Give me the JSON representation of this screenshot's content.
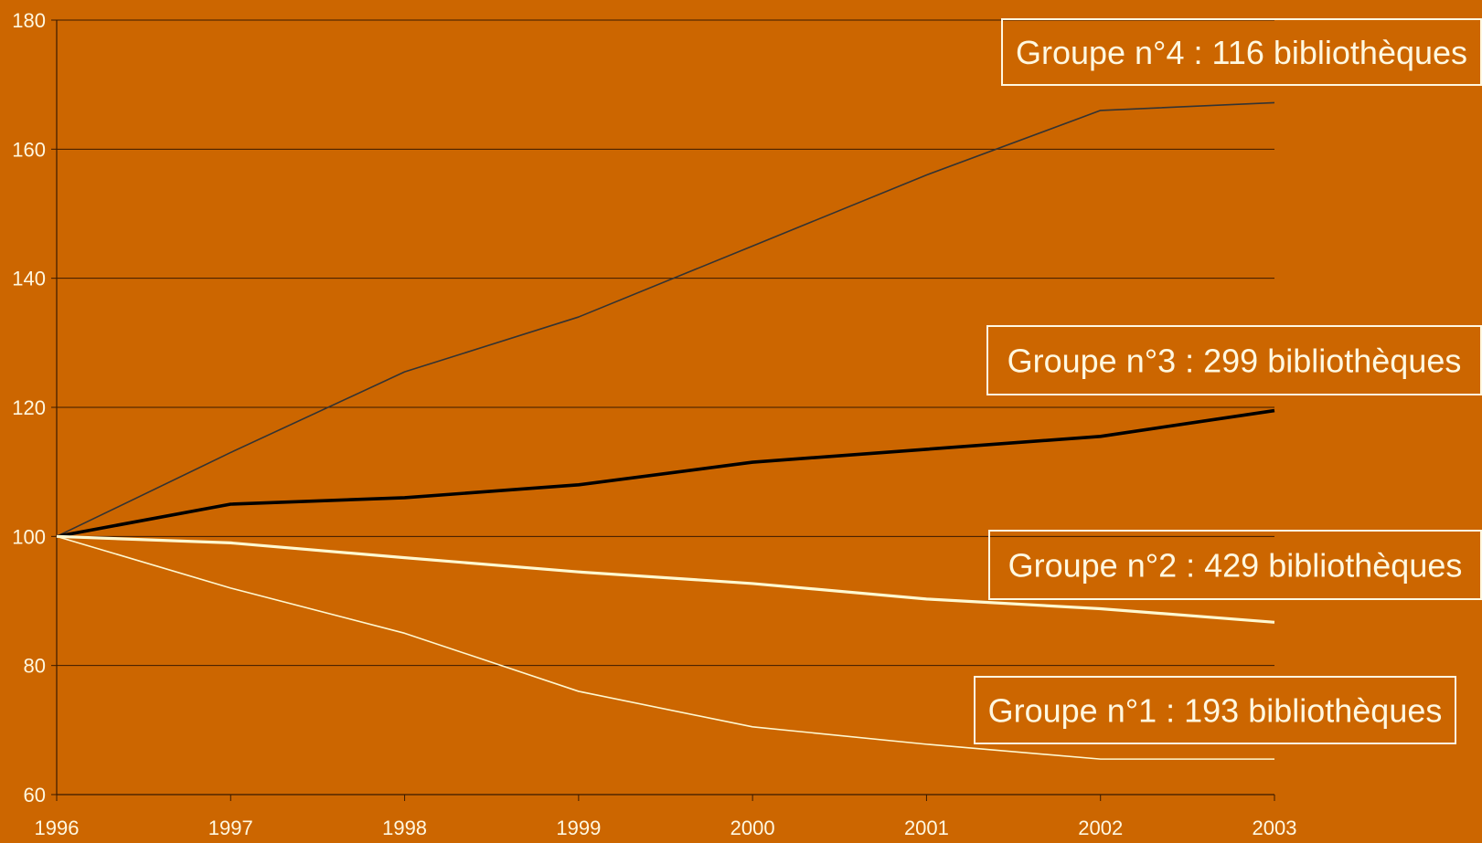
{
  "chart_data": {
    "type": "line",
    "title": "",
    "xlabel": "",
    "ylabel": "",
    "x": [
      1996,
      1997,
      1998,
      1999,
      2000,
      2001,
      2002,
      2003
    ],
    "x_tick_labels": [
      "1996",
      "1997",
      "1998",
      "1999",
      "2000",
      "2001",
      "2002",
      "2003"
    ],
    "ylim": [
      60,
      180
    ],
    "y_ticks": [
      60,
      80,
      100,
      120,
      140,
      160,
      180
    ],
    "y_tick_labels": [
      "60",
      "80",
      "100",
      "120",
      "140",
      "160",
      "180"
    ],
    "grid": "horizontal",
    "background_color": "#cc6600",
    "series": [
      {
        "name": "Groupe n°4 : 116 bibliothèques",
        "values": [
          100,
          113,
          125.5,
          134,
          145,
          156,
          166,
          167.2
        ],
        "color": "#333333",
        "style": "thin"
      },
      {
        "name": "Groupe n°3 : 299 bibliothèques",
        "values": [
          100,
          105,
          106,
          108,
          111.5,
          113.5,
          115.5,
          119.5
        ],
        "color": "#000000",
        "style": "thick"
      },
      {
        "name": "Groupe n°2 : 429 bibliothèques",
        "values": [
          100,
          99,
          96.7,
          94.5,
          92.7,
          90.3,
          88.8,
          86.7
        ],
        "color": "#fff8d0",
        "style": "medium"
      },
      {
        "name": "Groupe n°1 : 193 bibliothèques",
        "values": [
          100,
          92,
          85,
          76,
          70.5,
          67.8,
          65.5,
          65.5
        ],
        "color": "#fff8d0",
        "style": "thin"
      }
    ]
  }
}
